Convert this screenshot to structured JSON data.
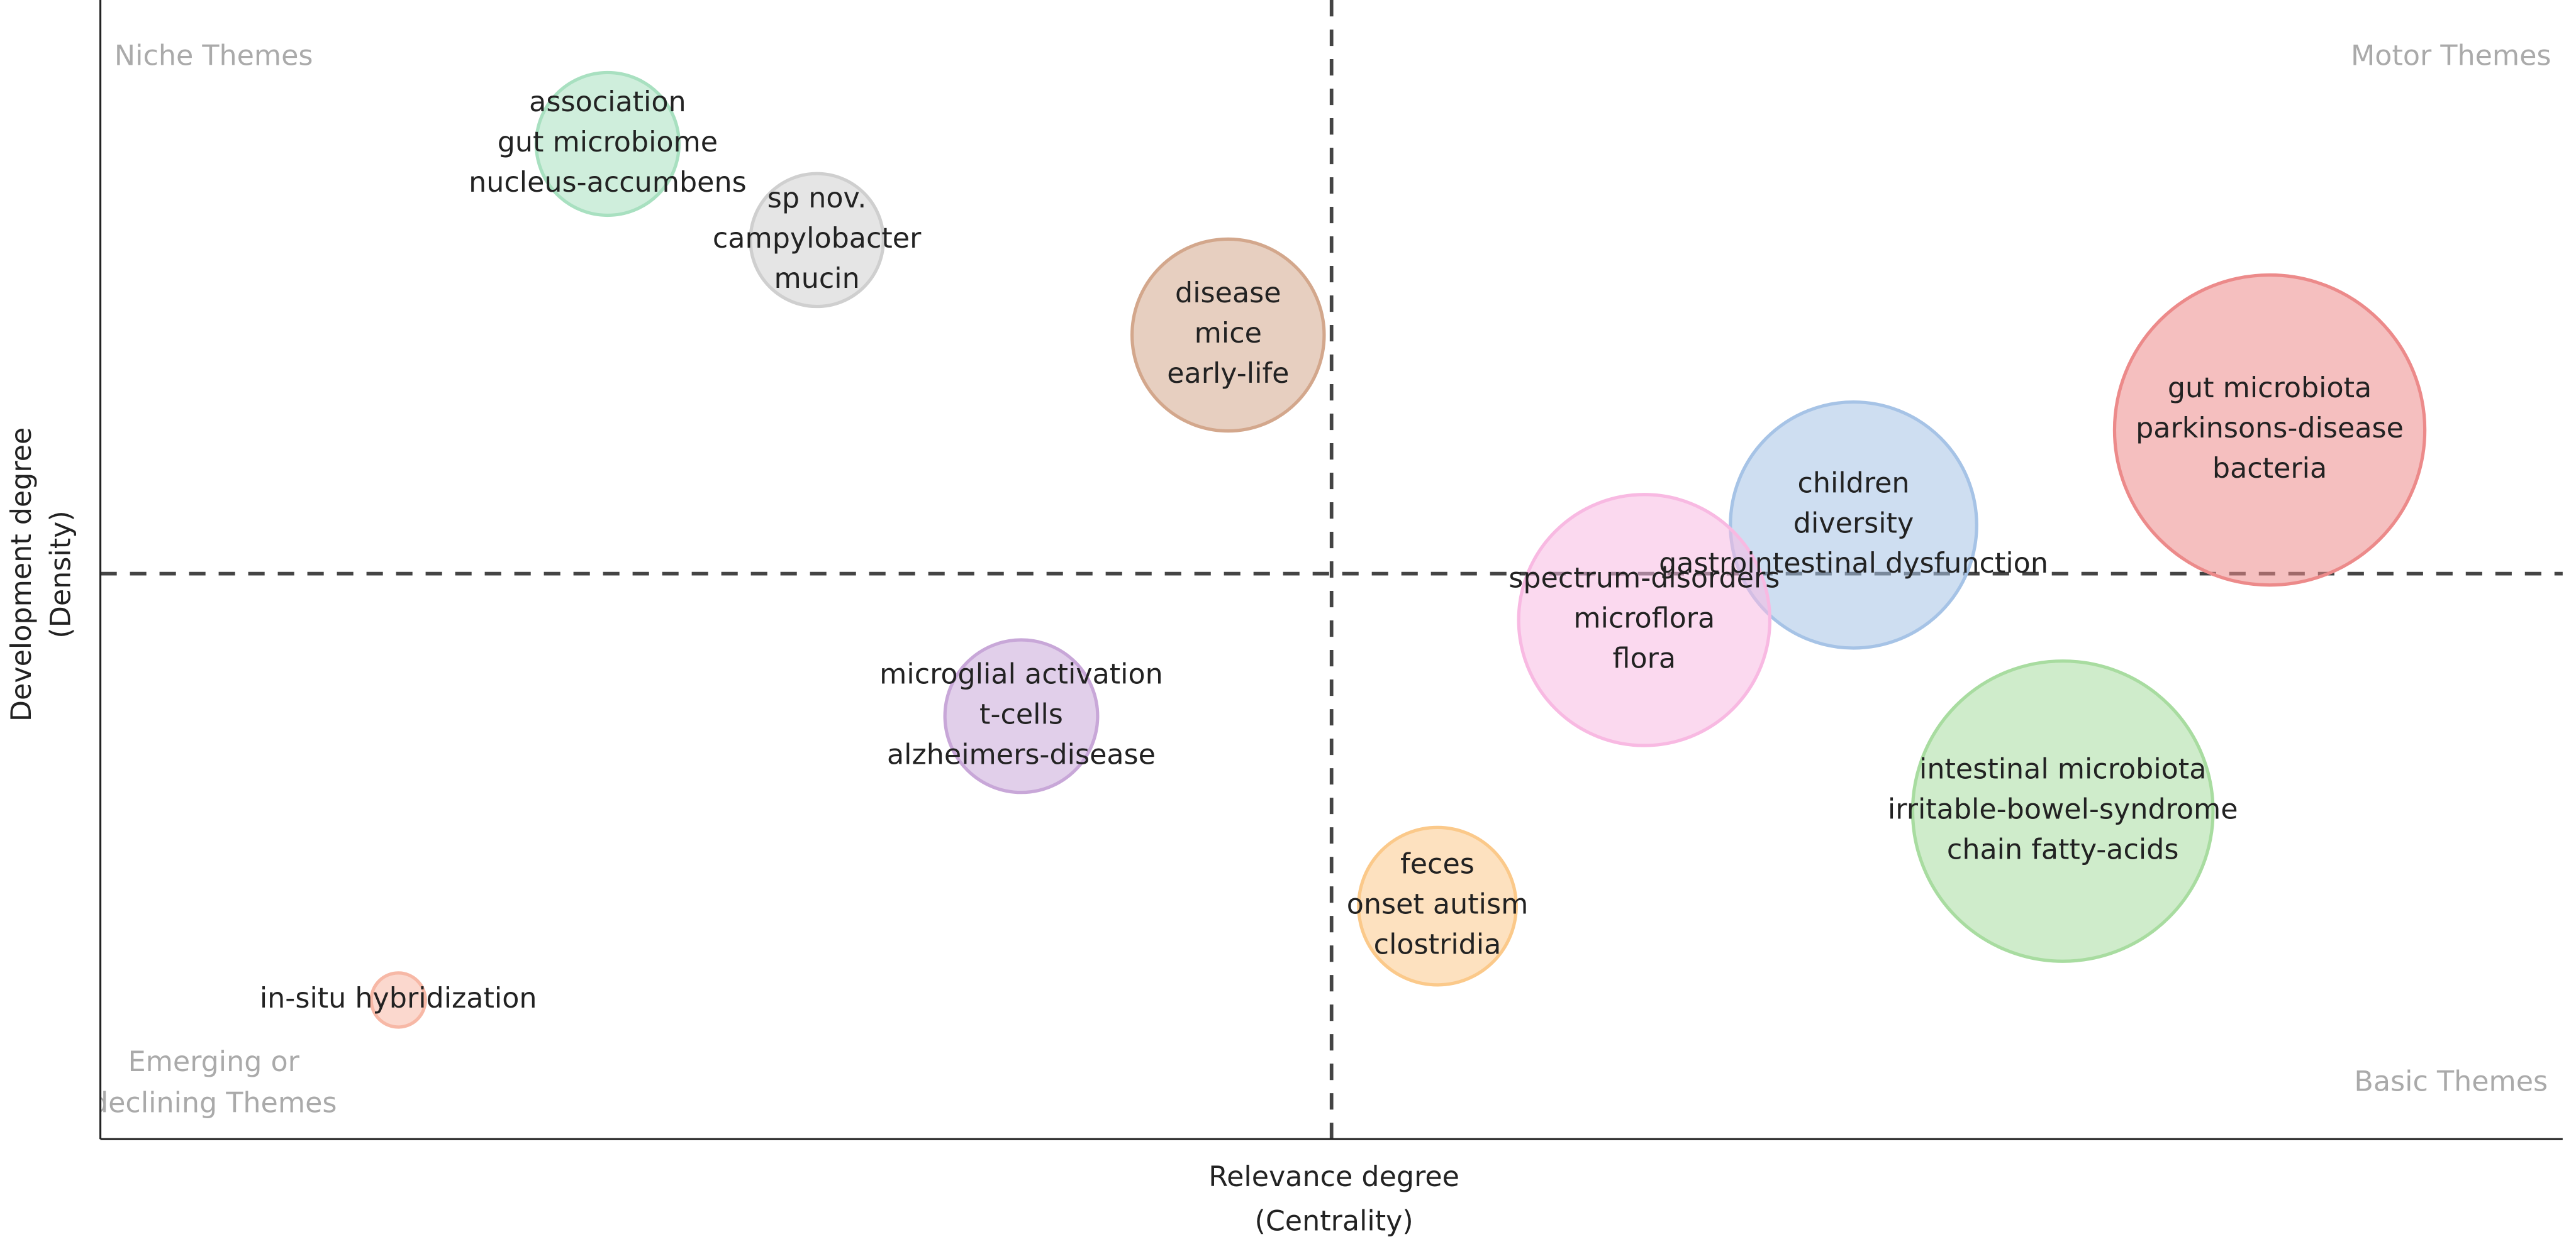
{
  "chart_data": {
    "type": "bubble",
    "xlabel": [
      "Relevance degree",
      "(Centrality)"
    ],
    "ylabel": [
      "Development degree",
      "(Density)"
    ],
    "xlim": [
      0,
      100
    ],
    "ylim": [
      0,
      100
    ],
    "xline": 50,
    "yline": 50,
    "quadrants": {
      "top_left": [
        "Niche Themes"
      ],
      "top_right": [
        "Motor Themes"
      ],
      "bottom_left": [
        "Emerging or",
        "declining Themes"
      ],
      "bottom_right": [
        "Basic Themes"
      ]
    },
    "clusters": [
      {
        "labels": [
          "association",
          "gut microbiome",
          "nucleus-accumbens"
        ],
        "x": 20.6,
        "y": 88.0,
        "size": 2.9,
        "color": "#a8e0c0"
      },
      {
        "labels": [
          "sp nov.",
          "campylobacter",
          "mucin"
        ],
        "x": 29.1,
        "y": 79.5,
        "size": 2.7,
        "color": "#cfcfcf"
      },
      {
        "labels": [
          "disease",
          "mice",
          "early-life"
        ],
        "x": 45.8,
        "y": 71.1,
        "size": 3.9,
        "color": "#d3a78c"
      },
      {
        "labels": [
          "gut microbiota",
          "parkinsons-disease",
          "bacteria"
        ],
        "x": 88.1,
        "y": 62.7,
        "size": 6.3,
        "color": "#ec8a8a"
      },
      {
        "labels": [
          "children",
          "diversity",
          "gastrointestinal dysfunction"
        ],
        "x": 71.2,
        "y": 54.3,
        "size": 5.0,
        "color": "#a6c3e6"
      },
      {
        "labels": [
          "spectrum-disorders",
          "microflora",
          "flora"
        ],
        "x": 62.7,
        "y": 45.9,
        "size": 5.1,
        "color": "#f8b9e2"
      },
      {
        "labels": [
          "microglial activation",
          "t-cells",
          "alzheimers-disease"
        ],
        "x": 37.4,
        "y": 37.4,
        "size": 3.1,
        "color": "#c8a7d8"
      },
      {
        "labels": [
          "intestinal microbiota",
          "irritable-bowel-syndrome",
          "chain fatty-acids"
        ],
        "x": 79.7,
        "y": 29.0,
        "size": 6.1,
        "color": "#a8dca0"
      },
      {
        "labels": [
          "feces",
          "onset autism",
          "clostridia"
        ],
        "x": 54.3,
        "y": 20.6,
        "size": 3.2,
        "color": "#fbc98a"
      },
      {
        "labels": [
          "in-situ hybridization"
        ],
        "x": 12.1,
        "y": 12.3,
        "size": 1.1,
        "color": "#f7b8a6"
      }
    ]
  }
}
